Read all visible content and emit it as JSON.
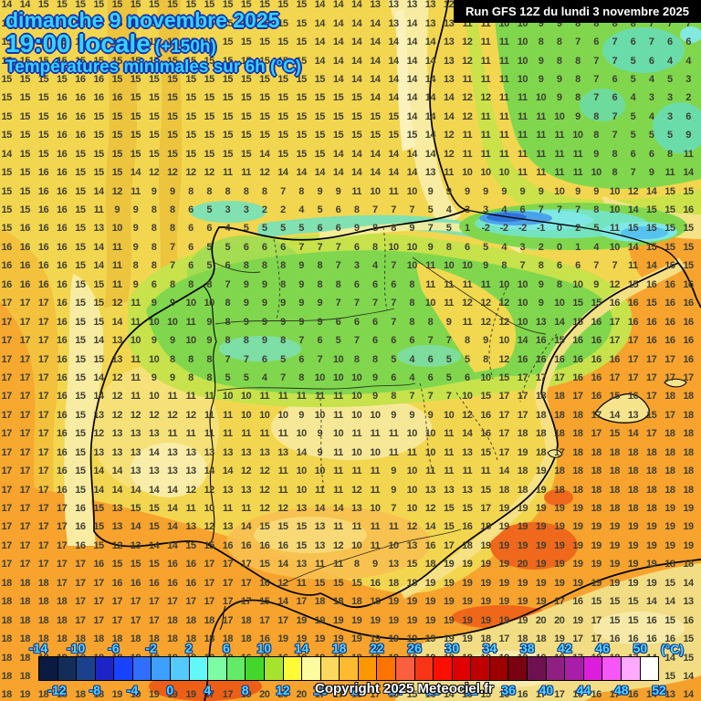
{
  "header": {
    "date_line": "dimanche 9 novembre 2025",
    "time_line": "19:00 locale",
    "time_offset": "(+150h)",
    "subtitle": "Températures minimales sur 6h (°C)",
    "run_info": "Run GFS 12Z du lundi 3 novembre 2025"
  },
  "footer": {
    "copyright": "Copyright 2025 Meteociel.fr",
    "unit_label": "(°C)"
  },
  "colorbar": {
    "cell_colors": [
      "#0b1a42",
      "#122e58",
      "#1a418c",
      "#1c24c8",
      "#1843ff",
      "#2f6eff",
      "#3f9ffd",
      "#55c8fc",
      "#63f8f8",
      "#7dfca4",
      "#63ea67",
      "#45d62b",
      "#a5e32c",
      "#fdfb38",
      "#fdfba0",
      "#fbd95e",
      "#feba31",
      "#fc9700",
      "#fb7500",
      "#fb5f3d",
      "#f93517",
      "#fb0f00",
      "#df0000",
      "#c00000",
      "#9d0000",
      "#7a0210",
      "#6f1150",
      "#8f1f82",
      "#a81ea8",
      "#dc1edc",
      "#f556f5",
      "#ffa9ff",
      "#ffffff"
    ],
    "labels_top": [
      "-14",
      "-10",
      "-6",
      "-2",
      "2",
      "6",
      "10",
      "14",
      "18",
      "22",
      "26",
      "30",
      "34",
      "38",
      "42",
      "46",
      "50"
    ],
    "labels_bottom": [
      "-12",
      "-8",
      "-4",
      "0",
      "4",
      "8",
      "12",
      "16",
      "20",
      "24",
      "28",
      "32",
      "36",
      "40",
      "44",
      "48",
      "52"
    ]
  },
  "palette": {
    "background_yellow": "#f3d64f",
    "pale_yellow": "#f8eca2",
    "green": "#80d74d",
    "yellow_green": "#c8e24b",
    "teal": "#74e3c0",
    "cold_blue": "#2f72d8",
    "orange_sea": "#f7a32d",
    "hot_orange_red": "#f0681b",
    "title_text": "#35d4ff",
    "title_outline": "#1733ae",
    "number_color": "#3f3f33"
  },
  "grid": {
    "rows": [
      "14 14 15 15 15 15 15 15 15 15 15 15 15 15 15 15 15 14 14 14 13 13 13 13 12 11 11 11 10 9 9 9 8 9 9 8 7 7",
      "14 15 15 15 15 15 15 15 15 15 15 15 15 15 15 15 15 14 14 14 14 13 14 13 13 11 11 10 10 9 9 8 8 8 8 7 7 7",
      "15 15 15 15 15 15 15 15 15 15 15 15 15 15 15 15 15 14 14 14 14 14 14 14 13 12 11 11 10 8 8 7 6 7 6 7 6 6",
      "15 15 15 15 15 15 15 15 15 15 15 15 15 15 15 15 15 14 14 14 14 14 14 14 13 12 11 11 10 9 8 8 7 7 5 6 4 4",
      "15 15 15 15 16 16 15 15 15 15 15 15 15 15 15 15 15 15 14 14 14 14 14 14 13 11 11 11 10 9 9 8 7 6 5 4 5 3",
      "15 15 15 16 16 16 16 15 15 15 15 15 15 15 15 15 15 15 15 15 14 14 14 14 14 12 12 11 11 10 9 8 7 6 4 3 3 2",
      "15 15 15 16 16 15 15 15 15 15 15 15 15 15 15 15 15 15 15 15 15 15 14 14 14 12 11 11 11 11 10 9 8 7 5 4 3 6",
      "15 15 15 16 16 15 15 15 15 15 15 15 15 15 15 15 15 15 15 15 15 15 15 14 12 11 11 11 11 11 11 10 8 7 5 5 5 9",
      "14 15 15 16 15 15 15 15 15 15 15 15 15 15 14 15 15 15 14 14 14 14 14 14 12 11 11 11 11 11 11 11 9 8 6 6 8 11",
      "15 15 16 16 15 15 15 14 12 12 12 12 11 11 12 14 14 14 14 14 14 14 14 13 11 10 10 10 11 11 11 11 10 8 7 9 11 14",
      "15 15 16 16 15 14 12 11 9 9 8 8 8 8 8 7 8 9 9 11 10 11 10 9 9 9 9 9 9 9 10 9 9 10 12 14 15 15",
      "15 15 16 16 15 11 9 9 8 8 6 5 3 3 2 2 4 5 6 8 7 7 7 5 4 3 3 4 6 7 7 7 8 10 14 15 15 16",
      "15 16 16 16 15 13 10 9 8 8 6 6 4 5 5 5 5 6 6 9 8 8 9 7 5 1 -2 -2 -2 -1 0 2 5 11 15 15 15 15",
      "16 16 16 16 15 14 11 9 8 7 6 5 5 6 6 6 7 7 7 6 8 10 10 9 8 6 5 4 3 2 0 1 4 10 14 15 15 15",
      "16 16 16 16 15 14 11 8 8 7 6 5 6 8 8 8 9 8 7 3 4 7 10 11 10 10 9 8 7 8 6 6 7 7 11 14 16 15",
      "16 16 16 16 15 15 11 9 6 8 8 8 7 9 9 8 9 8 8 6 6 6 8 11 11 11 11 10 10 9 8 10 9 12 15 16 16 16",
      "17 17 17 16 15 15 12 11 9 9 10 10 8 9 9 9 9 9 7 7 7 7 8 10 11 12 12 12 10 9 10 15 15 16 16 15 16 16",
      "17 17 17 16 15 15 14 11 10 10 11 9 8 9 9 9 9 9 6 6 6 7 8 8 9 11 12 12 10 13 14 15 16 17 16 16 16 16",
      "17 17 17 16 15 14 13 10 9 9 10 9 8 8 9 8 7 6 5 7 6 6 6 7 7 8 9 10 14 16 15 16 16 17 17 16 16 16",
      "17 17 17 16 15 15 13 11 10 8 8 8 7 7 6 5 6 7 10 8 8 5 4 6 5 5 8 12 16 16 16 16 16 16 17 17 17 16",
      "17 17 17 16 15 14 12 11 9 9 8 8 5 5 4 7 8 10 10 10 9 6 4 6 5 6 10 15 17 17 17 16 16 17 17 17 17 17",
      "17 17 17 16 15 14 12 11 10 11 11 11 10 10 11 11 11 11 11 10 9 8 7 7 7 10 15 17 17 18 18 17 16 15 16 17 18 18",
      "17 17 17 16 15 13 12 12 12 12 12 11 11 10 10 10 9 10 11 10 10 9 9 9 10 12 16 17 17 18 18 18 17 14 13 15 17 18",
      "17 17 17 16 15 12 13 13 13 11 11 11 11 11 11 11 10 9 10 11 11 11 10 10 11 14 16 17 18 18 18 18 17 15 14 17 18 18",
      "17 17 17 16 15 13 13 13 14 13 13 13 13 13 13 13 14 9 11 10 10 11 11 10 11 13 15 17 19 18 17 18 18 18 18 18 18 18",
      "17 17 17 16 15 14 14 13 13 13 13 14 14 12 12 11 10 10 11 11 11 9 10 11 11 11 11 14 18 19 18 18 18 18 18 18 18 18",
      "17 17 17 16 15 14 14 14 14 14 12 12 13 13 12 11 10 11 11 12 11 9 10 13 13 13 15 18 18 19 18 18 18 18 18 18 18 18",
      "17 17 17 17 16 15 13 15 15 14 11 10 11 11 12 12 13 14 14 13 10 7 10 12 15 15 17 19 19 19 19 19 18 18 18 18 19 19",
      "17 17 17 17 16 15 13 14 15 14 13 12 13 14 15 15 15 13 11 11 11 11 12 14 15 16 18 19 19 19 19 19 19 19 19 19 19 19",
      "17 17 17 17 16 15 12 13 14 14 15 15 16 16 16 16 15 13 12 10 11 10 13 16 17 18 19 19 19 19 19 19 19 19 19 19 19 19",
      "17 17 17 17 17 16 15 15 15 16 16 17 17 17 15 14 13 11 11 8 9 13 15 18 19 19 19 19 20 19 19 19 19 19 19 19 18 18",
      "18 18 18 17 17 17 16 16 16 16 16 17 17 17 16 12 11 15 15 15 16 18 18 19 19 19 19 19 19 19 19 19 19 19 19 19 15 14",
      "18 18 18 18 17 17 17 17 17 17 17 17 17 17 15 14 17 18 18 18 18 19 19 19 19 19 19 19 19 19 17 16 15 15 15 14 14 13",
      "18 18 18 18 17 17 17 17 17 18 18 18 17 18 17 17 19 19 19 19 19 19 19 19 19 19 19 19 19 20 20 19 17 15 15 16 15 16",
      "18 18 18 18 18 18 18 18 18 18 18 18 18 18 16 19 19 19 19 19 19 19 19 19 19 19 18 17 18 18 19 17 17 16 16 16 16 15",
      "18 18 18 18 18 18 18 18 18 18 18 18 18 16 13 16 18 19 19 18 18 19 19 19 18 18 19 19 19 19 19 17 18 18 17 14 14 15",
      "18 18 18 18 18 18 18 19 19 19 19 19 17 18 18 17 14 14 15 16 16 15 15 16 14 15 15 16 16 17 17 16 16 17 15 14 15 14",
      "18 19 18 18 18 18 19 19 19 19 19 17 17 19 20 20 20 17 17 16 17 15 15 16 14 15 15 16 16 17 17 16 16 17 16 14 13 14"
    ]
  }
}
